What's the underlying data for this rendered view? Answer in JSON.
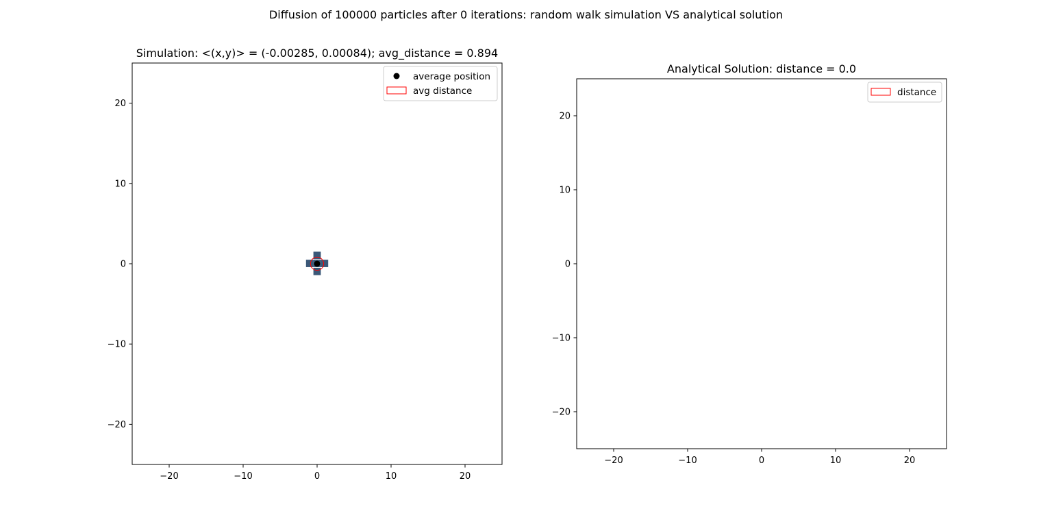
{
  "figure": {
    "suptitle": "Diffusion of 100000 particles after 0 iterations: random walk simulation VS analytical solution"
  },
  "chart_data": [
    {
      "type": "scatter",
      "title": "Simulation: <(x,y)> = (-0.00285, 0.00084); avg_distance = 0.894",
      "xlabel": "",
      "ylabel": "",
      "xlim": [
        -25,
        25
      ],
      "ylim": [
        -25,
        25
      ],
      "xticks": [
        -20,
        -10,
        0,
        10,
        20
      ],
      "yticks": [
        -20,
        -10,
        0,
        10,
        20
      ],
      "grid": false,
      "legend_position": "upper right",
      "particle_cells": [
        {
          "x": 0,
          "y": 0
        },
        {
          "x": 1,
          "y": 0
        },
        {
          "x": -1,
          "y": 0
        },
        {
          "x": 0,
          "y": 1
        },
        {
          "x": 0,
          "y": -1
        }
      ],
      "particle_color": "#3b5878",
      "average_position": {
        "x": -0.00285,
        "y": 0.00084
      },
      "avg_distance": 0.894,
      "circle_color": "#ff0000",
      "legend": [
        {
          "label": "average position",
          "marker": "dot",
          "color": "#000000"
        },
        {
          "label": "avg distance",
          "marker": "rect",
          "color": "#ff0000"
        }
      ]
    },
    {
      "type": "scatter",
      "title": "Analytical Solution: distance = 0.0",
      "xlabel": "",
      "ylabel": "",
      "xlim": [
        -25,
        25
      ],
      "ylim": [
        -25,
        25
      ],
      "xticks": [
        -20,
        -10,
        0,
        10,
        20
      ],
      "yticks": [
        -20,
        -10,
        0,
        10,
        20
      ],
      "grid": false,
      "legend_position": "upper right",
      "distance": 0.0,
      "circle_color": "#ff0000",
      "legend": [
        {
          "label": "distance",
          "marker": "rect",
          "color": "#ff0000"
        }
      ]
    }
  ]
}
